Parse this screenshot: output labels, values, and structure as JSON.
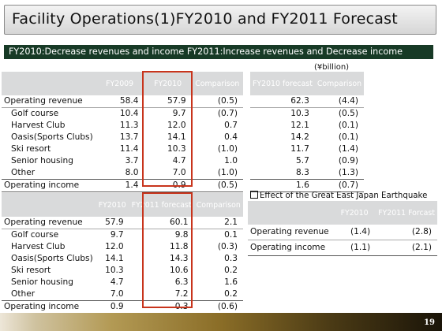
{
  "header": {
    "title": "Facility Operations(1)FY2010 and FY2011 Forecast"
  },
  "banner": {
    "text": "FY2010:Decrease revenues and income  FY2011:Increase revenues and Decrease income"
  },
  "unit_label": "(¥billion)",
  "table1": {
    "headers": [
      "",
      "FY2009",
      "FY2010",
      "Comparison"
    ],
    "rows": [
      [
        "Operating revenue",
        "58.4",
        "57.9",
        "(0.5)"
      ],
      [
        "Golf course",
        "10.4",
        "9.7",
        "(0.7)"
      ],
      [
        "Harvest Club",
        "11.3",
        "12.0",
        "0.7"
      ],
      [
        "Oasis(Sports Clubs)",
        "13.7",
        "14.1",
        "0.4"
      ],
      [
        "Ski resort",
        "11.4",
        "10.3",
        "(1.0)"
      ],
      [
        "Senior housing",
        "3.7",
        "4.7",
        "1.0"
      ],
      [
        "Other",
        "8.0",
        "7.0",
        "(1.0)"
      ],
      [
        "Operating income",
        "1.4",
        "0.9",
        "(0.5)"
      ]
    ]
  },
  "table2": {
    "headers": [
      "FY2010 forecast",
      "Comparison"
    ],
    "rows": [
      [
        "62.3",
        "(4.4)"
      ],
      [
        "10.3",
        "(0.5)"
      ],
      [
        "12.1",
        "(0.1)"
      ],
      [
        "14.2",
        "(0.1)"
      ],
      [
        "11.7",
        "(1.4)"
      ],
      [
        "5.7",
        "(0.9)"
      ],
      [
        "8.3",
        "(1.3)"
      ],
      [
        "1.6",
        "(0.7)"
      ]
    ]
  },
  "table3": {
    "headers": [
      "",
      "FY2010",
      "FY2011 forecast",
      "Comparison"
    ],
    "rows": [
      [
        "Operating revenue",
        "57.9",
        "60.1",
        "2.1"
      ],
      [
        "Golf course",
        "9.7",
        "9.8",
        "0.1"
      ],
      [
        "Harvest Club",
        "12.0",
        "11.8",
        "(0.3)"
      ],
      [
        "Oasis(Sports Clubs)",
        "14.1",
        "14.3",
        "0.3"
      ],
      [
        "Ski resort",
        "10.3",
        "10.6",
        "0.2"
      ],
      [
        "Senior housing",
        "4.7",
        "6.3",
        "1.6"
      ],
      [
        "Other",
        "7.0",
        "7.2",
        "0.2"
      ],
      [
        "Operating income",
        "0.9",
        "0.3",
        "(0.6)"
      ]
    ]
  },
  "earthquake": {
    "title": "Effect of the Great East Japan Earthquake",
    "headers": [
      "",
      "FY2010",
      "FY2011 Forcast"
    ],
    "rows": [
      [
        "Operating revenue",
        "(1.4)",
        "(2.8)"
      ],
      [
        "Operating income",
        "(1.1)",
        "(2.1)"
      ]
    ]
  },
  "page_number": "19"
}
